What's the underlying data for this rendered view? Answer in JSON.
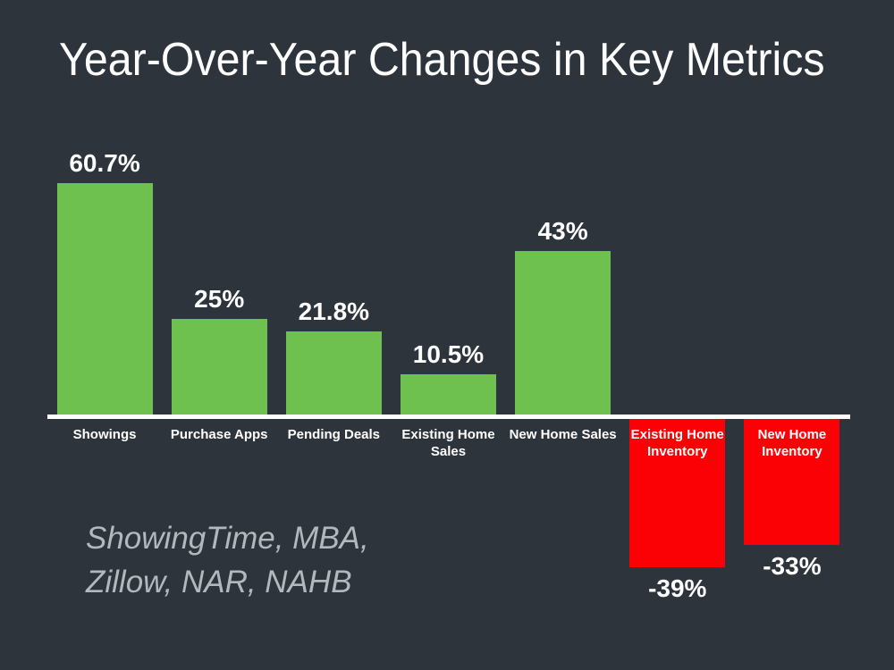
{
  "slide": {
    "title": "Year-Over-Year Changes in Key Metrics",
    "source_note_line1": "ShowingTime, MBA,",
    "source_note_line2": "Zillow, NAR, NAHB",
    "background_color": "#2d343c",
    "title_color": "#ffffff",
    "source_note_color": "#b2b8bb"
  },
  "chart_data": {
    "type": "bar",
    "title": "Year-Over-Year Changes in Key Metrics",
    "categories": [
      "Showings",
      "Purchase Apps",
      "Pending Deals",
      "Existing Home Sales",
      "New Home Sales",
      "Existing Home Inventory",
      "New Home Inventory"
    ],
    "values": [
      60.7,
      25,
      21.8,
      10.5,
      43,
      -39,
      -33
    ],
    "value_labels": [
      "60.7%",
      "25%",
      "21.8%",
      "10.5%",
      "43%",
      "-39%",
      "-33%"
    ],
    "xlabel": "",
    "ylabel": "",
    "baseline": 0,
    "grid": false,
    "legend": false,
    "positive_color": "#6ec04f",
    "negative_color": "#fb0005",
    "axis_color": "#ffffff",
    "data_label_color": "#ffffff",
    "category_label_color": "#ffffff"
  }
}
